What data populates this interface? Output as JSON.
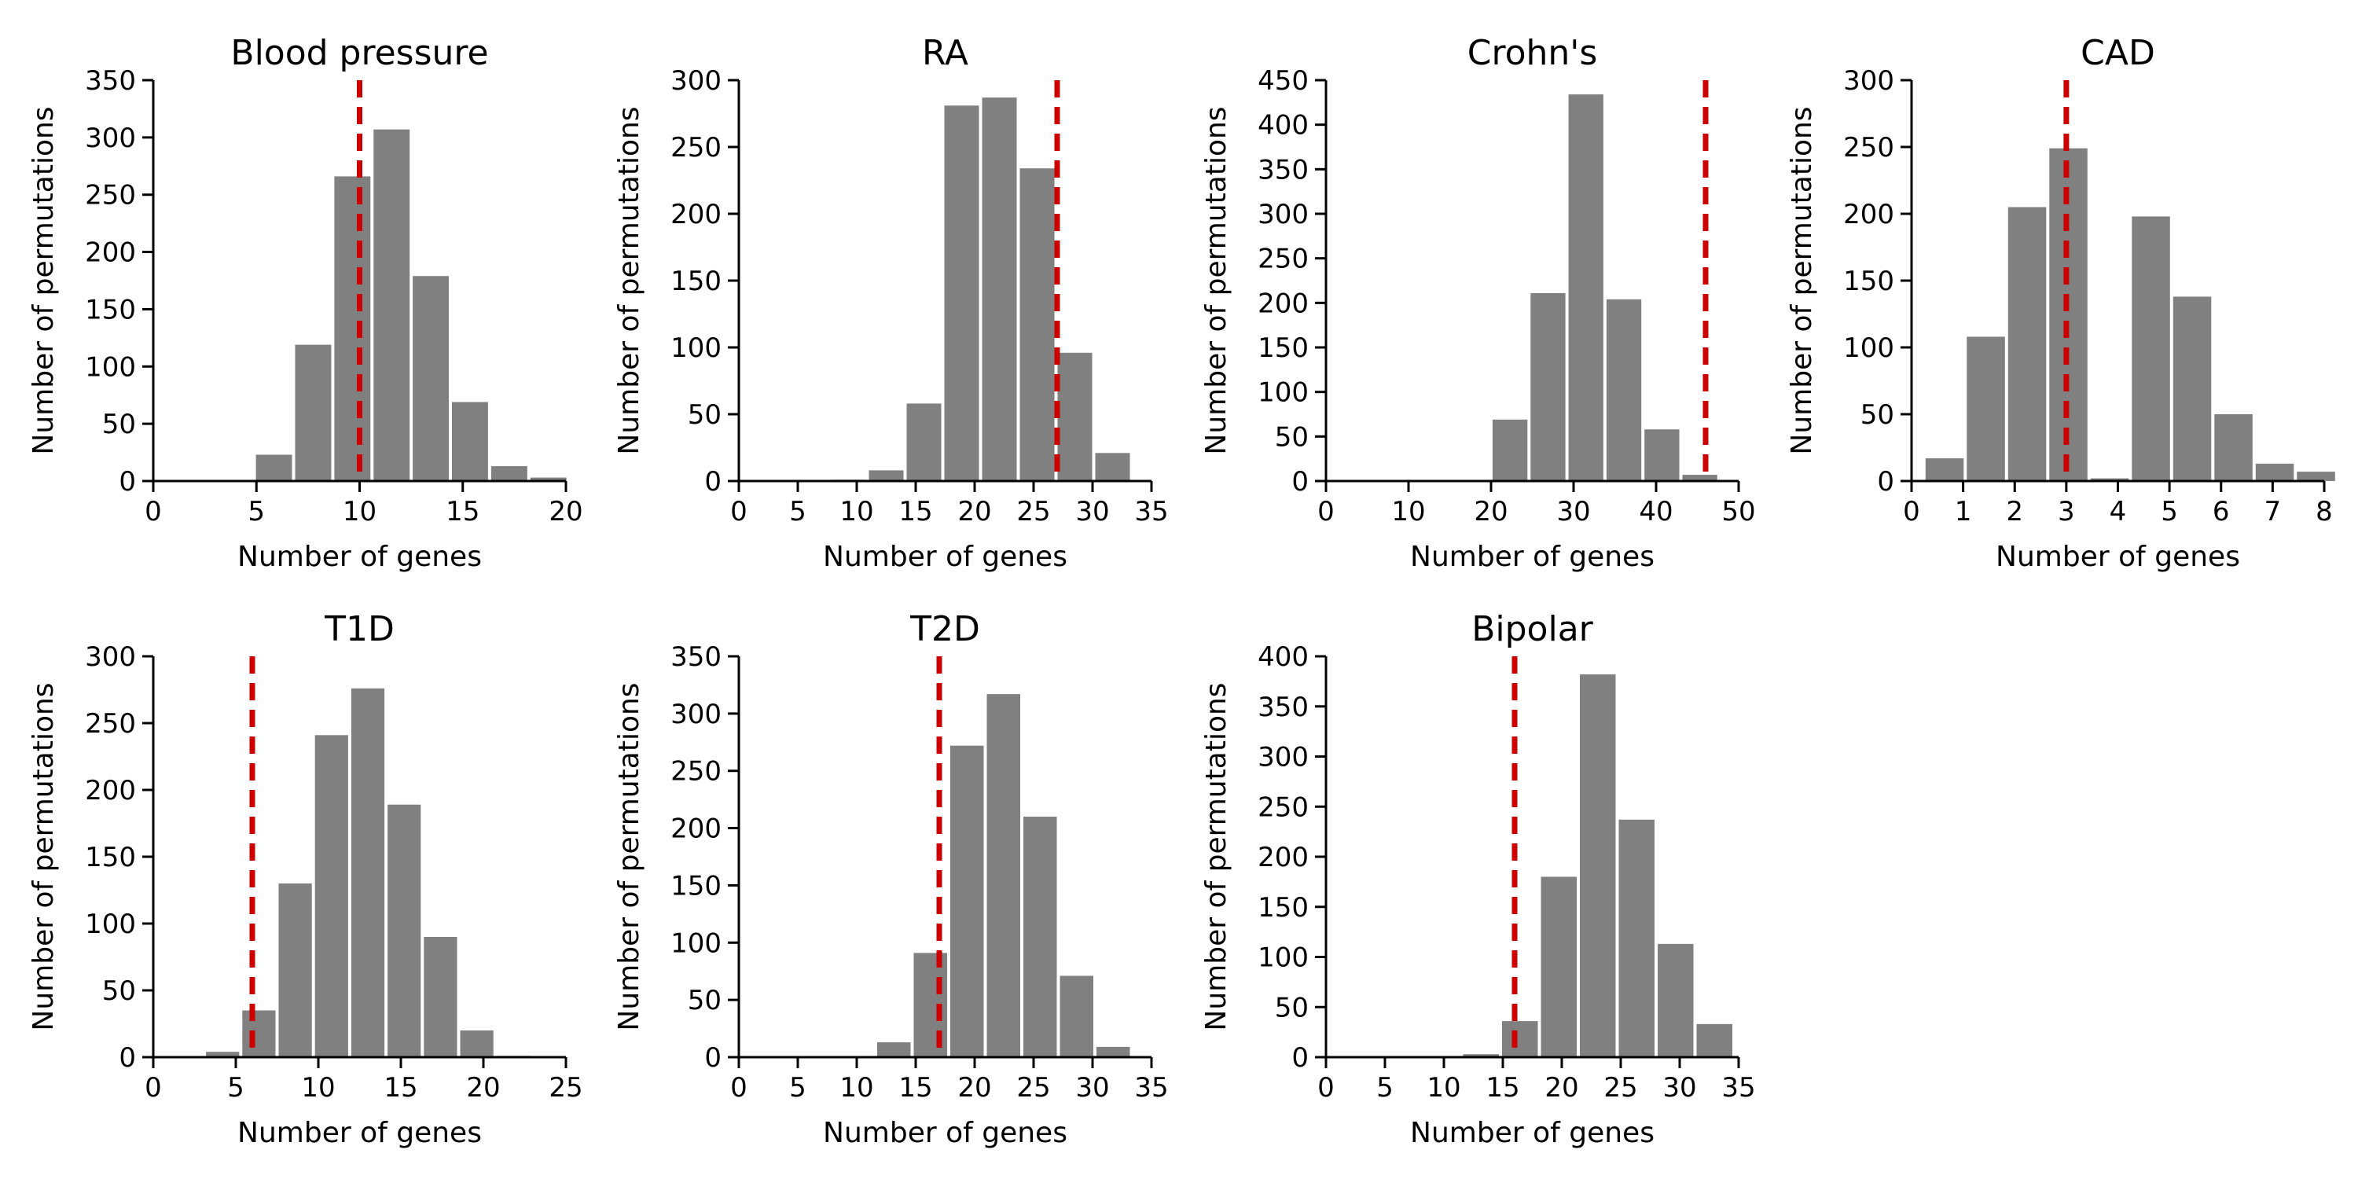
{
  "figure": {
    "colors": {
      "bar": "#808080",
      "observed_line": "#cc0000",
      "axis": "#000000"
    }
  },
  "chart_data": [
    {
      "type": "bar",
      "title": "Blood pressure",
      "xlabel": "Number of genes",
      "ylabel": "Number of permutations",
      "xlim": [
        0,
        20
      ],
      "ylim": [
        0,
        350
      ],
      "xticks": [
        0,
        5,
        10,
        15,
        20
      ],
      "yticks": [
        0,
        50,
        100,
        150,
        200,
        250,
        300,
        350
      ],
      "bin_width": 1.9,
      "bins": [
        {
          "x": 4.9,
          "value": 23
        },
        {
          "x": 6.8,
          "value": 119
        },
        {
          "x": 8.7,
          "value": 266
        },
        {
          "x": 10.6,
          "value": 307
        },
        {
          "x": 12.5,
          "value": 179
        },
        {
          "x": 14.4,
          "value": 69
        },
        {
          "x": 16.3,
          "value": 13
        },
        {
          "x": 18.2,
          "value": 3
        }
      ],
      "observed": 10
    },
    {
      "type": "bar",
      "title": "RA",
      "xlabel": "Number of genes",
      "ylabel": "Number of permutations",
      "xlim": [
        0,
        35
      ],
      "ylim": [
        0,
        300
      ],
      "xticks": [
        0,
        5,
        10,
        15,
        20,
        25,
        30,
        35
      ],
      "yticks": [
        0,
        50,
        100,
        150,
        200,
        250,
        300
      ],
      "bin_width": 3.2,
      "bins": [
        {
          "x": 4.5,
          "value": 0
        },
        {
          "x": 7.7,
          "value": 1
        },
        {
          "x": 10.9,
          "value": 8
        },
        {
          "x": 14.1,
          "value": 58
        },
        {
          "x": 17.3,
          "value": 281
        },
        {
          "x": 20.5,
          "value": 287
        },
        {
          "x": 23.7,
          "value": 234
        },
        {
          "x": 26.9,
          "value": 96
        },
        {
          "x": 30.1,
          "value": 21
        }
      ],
      "observed": 27
    },
    {
      "type": "bar",
      "title": "Crohn's",
      "xlabel": "Number of genes",
      "ylabel": "Number of permutations",
      "xlim": [
        0,
        50
      ],
      "ylim": [
        0,
        450
      ],
      "xticks": [
        0,
        10,
        20,
        30,
        40,
        50
      ],
      "yticks": [
        0,
        50,
        100,
        150,
        200,
        250,
        300,
        350,
        400,
        450
      ],
      "bin_width": 4.6,
      "bins": [
        {
          "x": 6.2,
          "value": 0
        },
        {
          "x": 10.8,
          "value": 0
        },
        {
          "x": 15.4,
          "value": 1
        },
        {
          "x": 20.0,
          "value": 69
        },
        {
          "x": 24.6,
          "value": 211
        },
        {
          "x": 29.2,
          "value": 434
        },
        {
          "x": 33.8,
          "value": 204
        },
        {
          "x": 38.4,
          "value": 58
        },
        {
          "x": 43.0,
          "value": 7
        }
      ],
      "observed": 46
    },
    {
      "type": "bar",
      "title": "CAD",
      "xlabel": "Number of genes",
      "ylabel": "Number of permutations",
      "xlim": [
        0,
        8
      ],
      "ylim": [
        0,
        300
      ],
      "xticks": [
        0,
        1,
        2,
        3,
        4,
        5,
        6,
        7,
        8
      ],
      "yticks": [
        0,
        50,
        100,
        150,
        200,
        250,
        300
      ],
      "bin_width": 0.8,
      "bins": [
        {
          "x": 0.24,
          "value": 17
        },
        {
          "x": 1.04,
          "value": 108
        },
        {
          "x": 1.84,
          "value": 205
        },
        {
          "x": 2.64,
          "value": 249
        },
        {
          "x": 3.44,
          "value": 2
        },
        {
          "x": 4.24,
          "value": 198
        },
        {
          "x": 5.04,
          "value": 138
        },
        {
          "x": 5.84,
          "value": 50
        },
        {
          "x": 6.64,
          "value": 13
        },
        {
          "x": 7.44,
          "value": 7
        }
      ],
      "observed": 3
    },
    {
      "type": "bar",
      "title": "T1D",
      "xlabel": "Number of genes",
      "ylabel": "Number of permutations",
      "xlim": [
        0,
        25
      ],
      "ylim": [
        0,
        300
      ],
      "xticks": [
        0,
        5,
        10,
        15,
        20,
        25
      ],
      "yticks": [
        0,
        50,
        100,
        150,
        200,
        250,
        300
      ],
      "bin_width": 2.2,
      "bins": [
        {
          "x": 3.1,
          "value": 4
        },
        {
          "x": 5.3,
          "value": 35
        },
        {
          "x": 7.5,
          "value": 130
        },
        {
          "x": 9.7,
          "value": 241
        },
        {
          "x": 11.9,
          "value": 276
        },
        {
          "x": 14.1,
          "value": 189
        },
        {
          "x": 16.3,
          "value": 90
        },
        {
          "x": 18.5,
          "value": 20
        },
        {
          "x": 20.7,
          "value": 1
        }
      ],
      "observed": 6
    },
    {
      "type": "bar",
      "title": "T2D",
      "xlabel": "Number of genes",
      "ylabel": "Number of permutations",
      "xlim": [
        0,
        35
      ],
      "ylim": [
        0,
        350
      ],
      "xticks": [
        0,
        5,
        10,
        15,
        20,
        25,
        30,
        35
      ],
      "yticks": [
        0,
        50,
        100,
        150,
        200,
        250,
        300,
        350
      ],
      "bin_width": 3.1,
      "bins": [
        {
          "x": 5.4,
          "value": 0
        },
        {
          "x": 8.5,
          "value": 1
        },
        {
          "x": 11.6,
          "value": 13
        },
        {
          "x": 14.7,
          "value": 91
        },
        {
          "x": 17.8,
          "value": 272
        },
        {
          "x": 20.9,
          "value": 317
        },
        {
          "x": 24.0,
          "value": 210
        },
        {
          "x": 27.1,
          "value": 71
        },
        {
          "x": 30.2,
          "value": 9
        }
      ],
      "observed": 17
    },
    {
      "type": "bar",
      "title": "Bipolar",
      "xlabel": "Number of genes",
      "ylabel": "Number of permutations",
      "xlim": [
        0,
        35
      ],
      "ylim": [
        0,
        400
      ],
      "xticks": [
        0,
        5,
        10,
        15,
        20,
        25,
        30,
        35
      ],
      "yticks": [
        0,
        50,
        100,
        150,
        200,
        250,
        300,
        350,
        400
      ],
      "bin_width": 3.3,
      "bins": [
        {
          "x": 4.9,
          "value": 0
        },
        {
          "x": 8.2,
          "value": 1
        },
        {
          "x": 11.5,
          "value": 3
        },
        {
          "x": 14.8,
          "value": 36
        },
        {
          "x": 18.1,
          "value": 180
        },
        {
          "x": 21.4,
          "value": 382
        },
        {
          "x": 24.7,
          "value": 237
        },
        {
          "x": 28.0,
          "value": 113
        },
        {
          "x": 31.3,
          "value": 33
        }
      ],
      "observed": 16
    }
  ]
}
